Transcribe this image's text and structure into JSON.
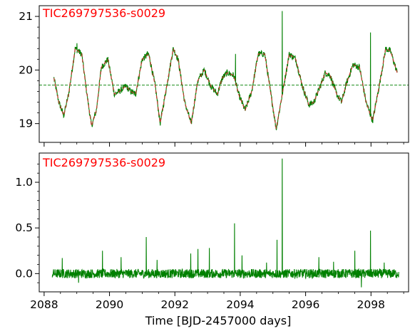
{
  "chart_data": [
    {
      "type": "line",
      "panel": "top",
      "annotation": "TIC269797536-s0029",
      "xlabel": "",
      "ylabel": "",
      "xlim": [
        2087.85,
        2099.15
      ],
      "ylim": [
        18.65,
        21.2
      ],
      "yticks_major": [
        19,
        20,
        21
      ],
      "yticks_minor": [
        19.2,
        19.4,
        19.6,
        19.8,
        20.2,
        20.4,
        20.6,
        20.8
      ],
      "xticks_major": [
        2088,
        2090,
        2092,
        2094,
        2096,
        2098
      ],
      "reference_line": 19.72,
      "grid": false,
      "series": [
        {
          "style": "solid",
          "color": "#008000",
          "x": [
            2088.3,
            2088.45,
            2088.6,
            2088.75,
            2088.95,
            2089.15,
            2089.3,
            2089.45,
            2089.6,
            2089.75,
            2089.95,
            2090.15,
            2090.3,
            2090.5,
            2090.65,
            2090.8,
            2091.0,
            2091.2,
            2091.4,
            2091.55,
            2091.75,
            2091.95,
            2092.1,
            2092.3,
            2092.5,
            2092.7,
            2092.9,
            2093.1,
            2093.3,
            2093.45,
            2093.6,
            2093.8,
            2093.95,
            2094.15,
            2094.35,
            2094.55,
            2094.75,
            2094.95,
            2095.1,
            2095.3,
            2095.5,
            2095.7,
            2095.9,
            2096.1,
            2096.25,
            2096.45,
            2096.6,
            2096.75,
            2096.95,
            2097.1,
            2097.25,
            2097.45,
            2097.65,
            2097.85,
            2098.05,
            2098.25,
            2098.45,
            2098.6,
            2098.8
          ],
          "values": [
            19.85,
            19.4,
            19.15,
            19.55,
            20.4,
            20.3,
            19.6,
            18.95,
            19.25,
            20.05,
            20.2,
            19.55,
            19.6,
            19.7,
            19.6,
            19.55,
            20.2,
            20.3,
            19.7,
            19.0,
            19.7,
            20.4,
            20.2,
            19.4,
            19.0,
            19.8,
            20.0,
            19.7,
            19.55,
            19.85,
            19.95,
            19.9,
            19.55,
            19.25,
            19.6,
            20.3,
            20.3,
            19.5,
            18.9,
            19.6,
            20.3,
            20.2,
            19.7,
            19.35,
            19.4,
            19.7,
            19.95,
            19.9,
            19.55,
            19.4,
            19.75,
            20.1,
            20.05,
            19.4,
            19.05,
            19.7,
            20.4,
            20.35,
            19.95
          ]
        },
        {
          "style": "dashed",
          "color": "#c0392b",
          "x": [
            2088.3,
            2088.45,
            2088.6,
            2088.75,
            2088.95,
            2089.15,
            2089.3,
            2089.45,
            2089.6,
            2089.75,
            2089.95,
            2090.15,
            2090.3,
            2090.5,
            2090.65,
            2090.8,
            2091.0,
            2091.2,
            2091.4,
            2091.55,
            2091.75,
            2091.95,
            2092.1,
            2092.3,
            2092.5,
            2092.7,
            2092.9,
            2093.1,
            2093.3,
            2093.45,
            2093.6,
            2093.8,
            2093.95,
            2094.15,
            2094.35,
            2094.55,
            2094.75,
            2094.95,
            2095.1,
            2095.3,
            2095.5,
            2095.7,
            2095.9,
            2096.1,
            2096.25,
            2096.45,
            2096.6,
            2096.75,
            2096.95,
            2097.1,
            2097.25,
            2097.45,
            2097.65,
            2097.85,
            2098.05,
            2098.25,
            2098.45,
            2098.6,
            2098.8
          ],
          "values": [
            19.85,
            19.4,
            19.15,
            19.55,
            20.4,
            20.3,
            19.6,
            18.95,
            19.25,
            20.05,
            20.2,
            19.55,
            19.6,
            19.7,
            19.6,
            19.55,
            20.2,
            20.3,
            19.7,
            19.0,
            19.7,
            20.4,
            20.2,
            19.4,
            19.0,
            19.8,
            20.0,
            19.7,
            19.55,
            19.85,
            19.95,
            19.9,
            19.55,
            19.25,
            19.6,
            20.3,
            20.3,
            19.5,
            18.9,
            19.6,
            20.3,
            20.2,
            19.7,
            19.35,
            19.4,
            19.7,
            19.95,
            19.9,
            19.55,
            19.4,
            19.75,
            20.1,
            20.05,
            19.4,
            19.05,
            19.7,
            20.4,
            20.35,
            19.95
          ]
        }
      ],
      "spikes": [
        {
          "x": 2095.28,
          "value": 21.1
        },
        {
          "x": 2093.85,
          "value": 20.3
        },
        {
          "x": 2097.98,
          "value": 20.7
        },
        {
          "x": 2089.0,
          "value": 20.5
        },
        {
          "x": 2091.15,
          "value": 20.35
        }
      ]
    },
    {
      "type": "line",
      "panel": "bottom",
      "annotation": "TIC269797536-s0029",
      "xlabel": "Time [BJD-2457000 days]",
      "ylabel": "",
      "xlim": [
        2087.85,
        2099.15
      ],
      "ylim": [
        -0.2,
        1.32
      ],
      "yticks_major": [
        0.0,
        0.5,
        1.0
      ],
      "yticks_minor": [
        -0.1,
        0.1,
        0.2,
        0.3,
        0.4,
        0.6,
        0.7,
        0.8,
        0.9,
        1.1,
        1.2
      ],
      "xticks_major": [
        2088,
        2090,
        2092,
        2094,
        2096,
        2098
      ],
      "grid": false,
      "series": [
        {
          "style": "solid",
          "color": "#008000",
          "x_start": 2088.25,
          "x_end": 2098.85,
          "baseline": 0.0,
          "noise_amplitude": 0.05
        }
      ],
      "spikes": [
        {
          "x": 2095.28,
          "value": 1.26
        },
        {
          "x": 2093.82,
          "value": 0.55
        },
        {
          "x": 2097.98,
          "value": 0.47
        },
        {
          "x": 2091.12,
          "value": 0.4
        },
        {
          "x": 2095.12,
          "value": 0.37
        },
        {
          "x": 2093.05,
          "value": 0.28
        },
        {
          "x": 2092.7,
          "value": 0.27
        },
        {
          "x": 2089.78,
          "value": 0.25
        },
        {
          "x": 2097.5,
          "value": 0.25
        },
        {
          "x": 2092.48,
          "value": 0.22
        },
        {
          "x": 2094.05,
          "value": 0.2
        },
        {
          "x": 2090.35,
          "value": 0.18
        },
        {
          "x": 2096.4,
          "value": 0.18
        },
        {
          "x": 2088.55,
          "value": 0.17
        },
        {
          "x": 2091.45,
          "value": 0.15
        },
        {
          "x": 2096.85,
          "value": 0.13
        },
        {
          "x": 2098.4,
          "value": 0.12
        },
        {
          "x": 2094.8,
          "value": 0.12
        },
        {
          "x": 2097.7,
          "value": -0.15
        },
        {
          "x": 2089.05,
          "value": -0.1
        }
      ]
    }
  ]
}
